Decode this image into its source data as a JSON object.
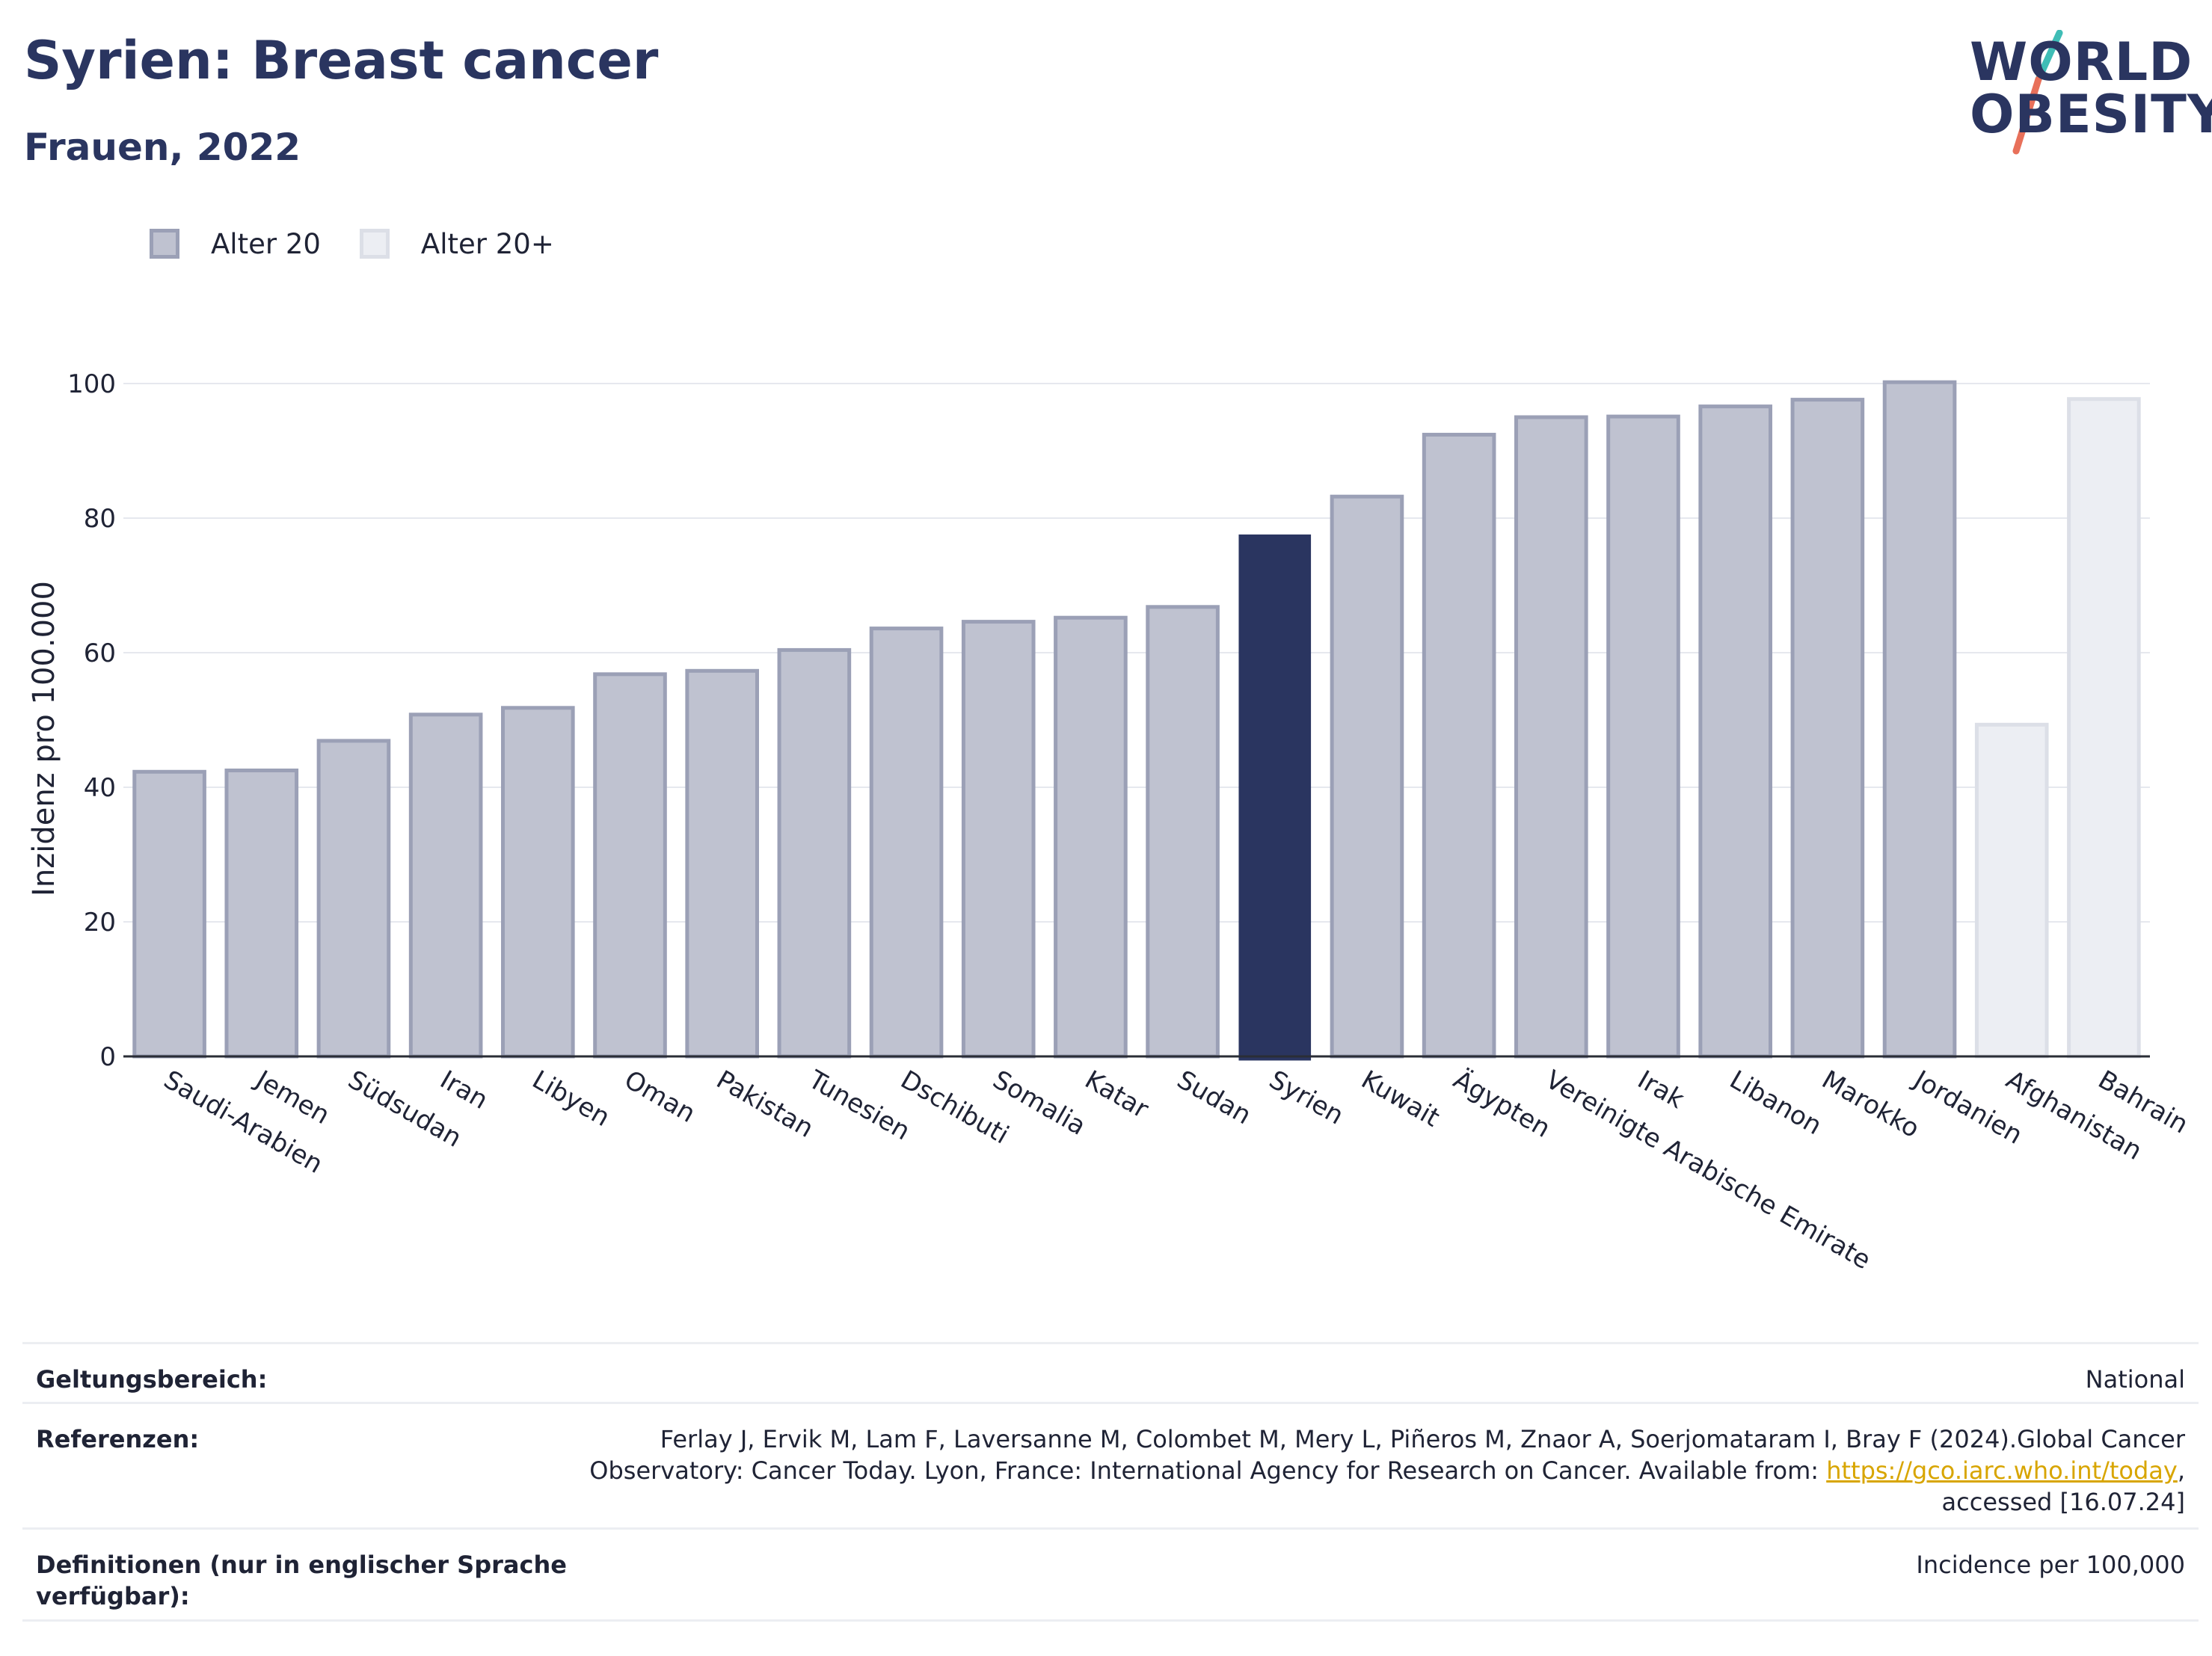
{
  "header": {
    "title": "Syrien: Breast cancer",
    "subtitle": "Frauen, 2022"
  },
  "logo": {
    "line1": "WORLD",
    "line2": "OBESITY",
    "slash_colors": [
      "#3fbdb6",
      "#e8705a"
    ]
  },
  "legend": {
    "items": [
      {
        "label": "Alter 20",
        "color": "#bfc2d0",
        "border": "#9ba0b6"
      },
      {
        "label": "Alter 20+",
        "color": "#eceef3",
        "border": "#dcdfe7"
      }
    ]
  },
  "colors": {
    "age20": "#bfc2d0",
    "age20_border": "#9ba0b6",
    "age20plus": "#eceef3",
    "age20plus_border": "#dcdfe7",
    "highlight": "#2a3560",
    "grid": "#e6e8ee",
    "axis": "#2a2d36"
  },
  "chart_data": {
    "type": "bar",
    "title": "Syrien: Breast cancer",
    "subtitle": "Frauen, 2022",
    "ylabel": "Inzidenz pro 100.000",
    "ylim": [
      0,
      100
    ],
    "yticks": [
      0,
      20,
      40,
      60,
      80,
      100
    ],
    "grid": true,
    "legend_position": "top-left",
    "categories": [
      "Saudi-Arabien",
      "Jemen",
      "Südsudan",
      "Iran",
      "Libyen",
      "Oman",
      "Pakistan",
      "Tunesien",
      "Dschibuti",
      "Somalia",
      "Katar",
      "Sudan",
      "Syrien",
      "Kuwait",
      "Ägypten",
      "Vereinigte Arabische Emirate",
      "Irak",
      "Libanon",
      "Marokko",
      "Jordanien",
      "Afghanistan",
      "Bahrain"
    ],
    "values": [
      42.3,
      42.5,
      46.9,
      50.8,
      51.8,
      56.8,
      57.3,
      60.4,
      63.6,
      64.6,
      65.2,
      66.8,
      77.4,
      83.2,
      92.4,
      95.0,
      95.1,
      96.6,
      97.6,
      100.2,
      49.3,
      97.7
    ],
    "group": [
      "Alter 20",
      "Alter 20",
      "Alter 20",
      "Alter 20",
      "Alter 20",
      "Alter 20",
      "Alter 20",
      "Alter 20",
      "Alter 20",
      "Alter 20",
      "Alter 20",
      "Alter 20",
      "Alter 20",
      "Alter 20",
      "Alter 20",
      "Alter 20",
      "Alter 20",
      "Alter 20",
      "Alter 20",
      "Alter 20",
      "Alter 20+",
      "Alter 20+"
    ],
    "highlight": "Syrien"
  },
  "info": {
    "rows": [
      {
        "label": "Geltungsbereich:",
        "value_lines": [
          "National"
        ]
      },
      {
        "label": "Referenzen:",
        "value_lines": [
          "Ferlay J, Ervik M, Lam F, Laversanne M, Colombet M, Mery L, Piñeros M, Znaor A, Soerjomataram I, Bray F (2024).Global Cancer",
          "Observatory: Cancer Today. Lyon, France: International Agency for Research on Cancer. Available from: ",
          "accessed [16.07.24]"
        ],
        "link_text": "https://gco.iarc.who.int/today",
        "link_suffix": ","
      },
      {
        "label": "Definitionen (nur in englischer Sprache verfügbar):",
        "value_lines": [
          "Incidence per 100,000"
        ]
      }
    ]
  }
}
